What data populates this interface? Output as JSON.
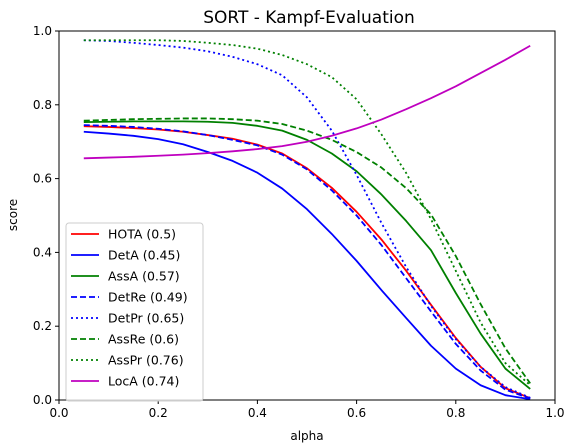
{
  "chart_data": {
    "type": "line",
    "title": "SORT - Kampf-Evaluation",
    "xlabel": "alpha",
    "ylabel": "score",
    "xlim": [
      0,
      1
    ],
    "ylim": [
      0,
      1
    ],
    "xticks": [
      "0.0",
      "0.2",
      "0.4",
      "0.6",
      "0.8",
      "1.0"
    ],
    "yticks": [
      "0.0",
      "0.2",
      "0.4",
      "0.6",
      "0.8",
      "1.0"
    ],
    "grid": false,
    "legend_position": "lower-left",
    "x": [
      0.05,
      0.1,
      0.15,
      0.2,
      0.25,
      0.3,
      0.35,
      0.4,
      0.45,
      0.5,
      0.55,
      0.6,
      0.65,
      0.7,
      0.75,
      0.8,
      0.85,
      0.9,
      0.95
    ],
    "series": [
      {
        "name": "HOTA (0.5)",
        "color": "#ff0000",
        "dash": "solid",
        "values": [
          0.742,
          0.74,
          0.737,
          0.733,
          0.727,
          0.718,
          0.708,
          0.692,
          0.668,
          0.628,
          0.575,
          0.51,
          0.435,
          0.35,
          0.258,
          0.168,
          0.09,
          0.032,
          0.005
        ]
      },
      {
        "name": "DetA (0.45)",
        "color": "#0000ff",
        "dash": "solid",
        "values": [
          0.727,
          0.722,
          0.716,
          0.707,
          0.693,
          0.672,
          0.648,
          0.616,
          0.573,
          0.517,
          0.45,
          0.377,
          0.298,
          0.222,
          0.147,
          0.085,
          0.04,
          0.013,
          0.002
        ]
      },
      {
        "name": "AssA (0.57)",
        "color": "#008000",
        "dash": "solid",
        "values": [
          0.753,
          0.754,
          0.755,
          0.755,
          0.755,
          0.754,
          0.751,
          0.743,
          0.73,
          0.705,
          0.668,
          0.62,
          0.557,
          0.485,
          0.406,
          0.29,
          0.18,
          0.085,
          0.03
        ]
      },
      {
        "name": "DetRe (0.49)",
        "color": "#0000ff",
        "dash": "dashed",
        "values": [
          0.745,
          0.743,
          0.74,
          0.735,
          0.728,
          0.718,
          0.705,
          0.69,
          0.665,
          0.625,
          0.568,
          0.5,
          0.42,
          0.33,
          0.24,
          0.152,
          0.08,
          0.028,
          0.004
        ]
      },
      {
        "name": "DetPr (0.65)",
        "color": "#0000ff",
        "dash": "dotted",
        "values": [
          0.975,
          0.973,
          0.968,
          0.962,
          0.955,
          0.945,
          0.93,
          0.91,
          0.88,
          0.82,
          0.73,
          0.61,
          0.48,
          0.36,
          0.255,
          0.165,
          0.09,
          0.035,
          0.006
        ]
      },
      {
        "name": "AssRe (0.6)",
        "color": "#008000",
        "dash": "dashed",
        "values": [
          0.757,
          0.759,
          0.761,
          0.762,
          0.763,
          0.763,
          0.761,
          0.757,
          0.748,
          0.73,
          0.705,
          0.672,
          0.63,
          0.574,
          0.503,
          0.39,
          0.26,
          0.14,
          0.045
        ]
      },
      {
        "name": "AssPr (0.76)",
        "color": "#008000",
        "dash": "dotted",
        "values": [
          0.975,
          0.975,
          0.975,
          0.975,
          0.973,
          0.968,
          0.962,
          0.952,
          0.935,
          0.91,
          0.875,
          0.815,
          0.72,
          0.615,
          0.49,
          0.35,
          0.21,
          0.1,
          0.04
        ]
      },
      {
        "name": "LocA (0.74)",
        "color": "#bf00bf",
        "dash": "solid",
        "values": [
          0.655,
          0.657,
          0.659,
          0.662,
          0.665,
          0.669,
          0.674,
          0.68,
          0.688,
          0.7,
          0.716,
          0.736,
          0.76,
          0.788,
          0.818,
          0.85,
          0.886,
          0.922,
          0.96
        ]
      }
    ]
  }
}
